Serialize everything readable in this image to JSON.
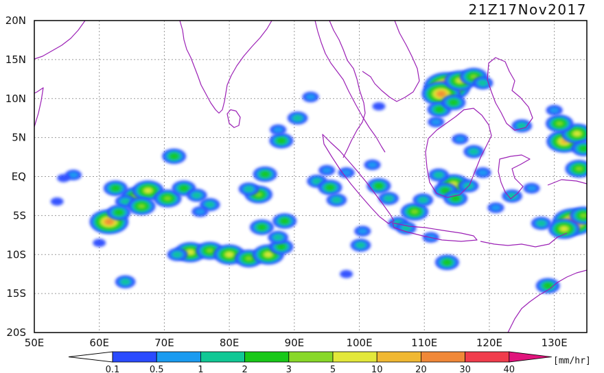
{
  "title": "21Z17Nov2017",
  "map": {
    "lon_range": [
      50,
      135
    ],
    "lat_range": [
      -20,
      20
    ],
    "lon_ticks": [
      "50E",
      "60E",
      "70E",
      "80E",
      "90E",
      "100E",
      "110E",
      "120E",
      "130E"
    ],
    "lat_ticks": [
      "20N",
      "15N",
      "10N",
      "5N",
      "EQ",
      "5S",
      "10S",
      "15S",
      "20S"
    ],
    "coast_color": "#9b1fb5",
    "grid": "dotted"
  },
  "colorbar": {
    "unit": "[mm/hr]",
    "ticks": [
      "0.1",
      "0.5",
      "1",
      "2",
      "3",
      "5",
      "10",
      "20",
      "30",
      "40"
    ],
    "colors": [
      "#2a4bff",
      "#1a9bf0",
      "#10c895",
      "#18c818",
      "#88d828",
      "#e3e83a",
      "#f0b832",
      "#f08838",
      "#f03c4c",
      "#e0147c"
    ]
  },
  "precip_cells": [
    {
      "lon": 65.5,
      "lat": -2.5,
      "level": 4
    },
    {
      "lon": 67.5,
      "lat": -1.8,
      "level": 5
    },
    {
      "lon": 62.5,
      "lat": -1.5,
      "level": 3
    },
    {
      "lon": 64,
      "lat": -3.2,
      "level": 2
    },
    {
      "lon": 66.5,
      "lat": -3.8,
      "level": 4
    },
    {
      "lon": 61.5,
      "lat": -5.8,
      "level": 7
    },
    {
      "lon": 63,
      "lat": -4.6,
      "level": 3
    },
    {
      "lon": 70.5,
      "lat": -2.8,
      "level": 4
    },
    {
      "lon": 73,
      "lat": -1.5,
      "level": 3
    },
    {
      "lon": 75,
      "lat": -2.4,
      "level": 2
    },
    {
      "lon": 77,
      "lat": -3.6,
      "level": 2
    },
    {
      "lon": 56,
      "lat": 0.2,
      "level": 1
    },
    {
      "lon": 54.5,
      "lat": -0.2,
      "level": 0
    },
    {
      "lon": 53.5,
      "lat": -3.2,
      "level": 0
    },
    {
      "lon": 71.5,
      "lat": 2.6,
      "level": 3
    },
    {
      "lon": 74,
      "lat": -9.7,
      "level": 5
    },
    {
      "lon": 77,
      "lat": -9.5,
      "level": 4
    },
    {
      "lon": 80,
      "lat": -10.0,
      "level": 5
    },
    {
      "lon": 83,
      "lat": -10.5,
      "level": 4
    },
    {
      "lon": 86,
      "lat": -10.0,
      "level": 5
    },
    {
      "lon": 88,
      "lat": -9.0,
      "level": 3
    },
    {
      "lon": 72,
      "lat": -10.0,
      "level": 2
    },
    {
      "lon": 85,
      "lat": -6.5,
      "level": 3
    },
    {
      "lon": 87.5,
      "lat": -7.8,
      "level": 2
    },
    {
      "lon": 88.5,
      "lat": -5.7,
      "level": 3
    },
    {
      "lon": 84.5,
      "lat": -2.3,
      "level": 4
    },
    {
      "lon": 85.5,
      "lat": 0.3,
      "level": 3
    },
    {
      "lon": 83,
      "lat": -1.6,
      "level": 2
    },
    {
      "lon": 88,
      "lat": 4.6,
      "level": 3
    },
    {
      "lon": 87.5,
      "lat": 6.0,
      "level": 1
    },
    {
      "lon": 93.5,
      "lat": -0.6,
      "level": 2
    },
    {
      "lon": 95.5,
      "lat": -1.4,
      "level": 3
    },
    {
      "lon": 96.5,
      "lat": -3.0,
      "level": 2
    },
    {
      "lon": 98,
      "lat": 0.5,
      "level": 1
    },
    {
      "lon": 95,
      "lat": 0.8,
      "level": 1
    },
    {
      "lon": 103,
      "lat": -1.2,
      "level": 3
    },
    {
      "lon": 104.5,
      "lat": -2.8,
      "level": 2
    },
    {
      "lon": 102,
      "lat": 1.5,
      "level": 1
    },
    {
      "lon": 106,
      "lat": -6.0,
      "level": 2
    },
    {
      "lon": 108.5,
      "lat": -4.5,
      "level": 4
    },
    {
      "lon": 107.2,
      "lat": -6.6,
      "level": 2
    },
    {
      "lon": 109.8,
      "lat": -3.0,
      "level": 2
    },
    {
      "lon": 113.5,
      "lat": 11.5,
      "level": 9
    },
    {
      "lon": 112.6,
      "lat": 10.6,
      "level": 7
    },
    {
      "lon": 115.5,
      "lat": 12.3,
      "level": 5
    },
    {
      "lon": 117.6,
      "lat": 12.8,
      "level": 4
    },
    {
      "lon": 112.3,
      "lat": 8.6,
      "level": 3
    },
    {
      "lon": 114.5,
      "lat": 9.5,
      "level": 3
    },
    {
      "lon": 119,
      "lat": 12.0,
      "level": 2
    },
    {
      "lon": 111.8,
      "lat": 7.0,
      "level": 1
    },
    {
      "lon": 114.5,
      "lat": -1.0,
      "level": 5
    },
    {
      "lon": 113.2,
      "lat": -1.8,
      "level": 3
    },
    {
      "lon": 116.8,
      "lat": -1.2,
      "level": 2
    },
    {
      "lon": 114.8,
      "lat": -2.8,
      "level": 3
    },
    {
      "lon": 112.2,
      "lat": 0.2,
      "level": 2
    },
    {
      "lon": 119,
      "lat": 0.5,
      "level": 1
    },
    {
      "lon": 115.5,
      "lat": 4.8,
      "level": 1
    },
    {
      "lon": 117.6,
      "lat": 3.2,
      "level": 2
    },
    {
      "lon": 131.5,
      "lat": 4.5,
      "level": 6
    },
    {
      "lon": 133.5,
      "lat": 5.5,
      "level": 5
    },
    {
      "lon": 130.8,
      "lat": 6.8,
      "level": 4
    },
    {
      "lon": 133.8,
      "lat": 1.0,
      "level": 4
    },
    {
      "lon": 134.5,
      "lat": 3.6,
      "level": 3
    },
    {
      "lon": 130,
      "lat": 8.5,
      "level": 1
    },
    {
      "lon": 133,
      "lat": -5.8,
      "level": 8
    },
    {
      "lon": 131.5,
      "lat": -6.7,
      "level": 5
    },
    {
      "lon": 134.5,
      "lat": -5.0,
      "level": 4
    },
    {
      "lon": 128,
      "lat": -6.0,
      "level": 2
    },
    {
      "lon": 126.5,
      "lat": -1.5,
      "level": 1
    },
    {
      "lon": 129,
      "lat": -14.0,
      "level": 3
    },
    {
      "lon": 64,
      "lat": -13.5,
      "level": 2
    },
    {
      "lon": 100.5,
      "lat": -7.0,
      "level": 1
    },
    {
      "lon": 100.2,
      "lat": -8.8,
      "level": 2
    },
    {
      "lon": 111,
      "lat": -7.8,
      "level": 1
    },
    {
      "lon": 113.5,
      "lat": -11.0,
      "level": 3
    },
    {
      "lon": 98,
      "lat": -12.5,
      "level": 0
    },
    {
      "lon": 75.5,
      "lat": -4.5,
      "level": 1
    },
    {
      "lon": 60,
      "lat": -8.5,
      "level": 0
    },
    {
      "lon": 90.5,
      "lat": 7.5,
      "level": 2
    },
    {
      "lon": 92.5,
      "lat": 10.2,
      "level": 1
    },
    {
      "lon": 103,
      "lat": 9.0,
      "level": 0
    },
    {
      "lon": 123.5,
      "lat": -2.5,
      "level": 2
    },
    {
      "lon": 121,
      "lat": -4.0,
      "level": 1
    },
    {
      "lon": 125,
      "lat": 6.5,
      "level": 2
    }
  ]
}
